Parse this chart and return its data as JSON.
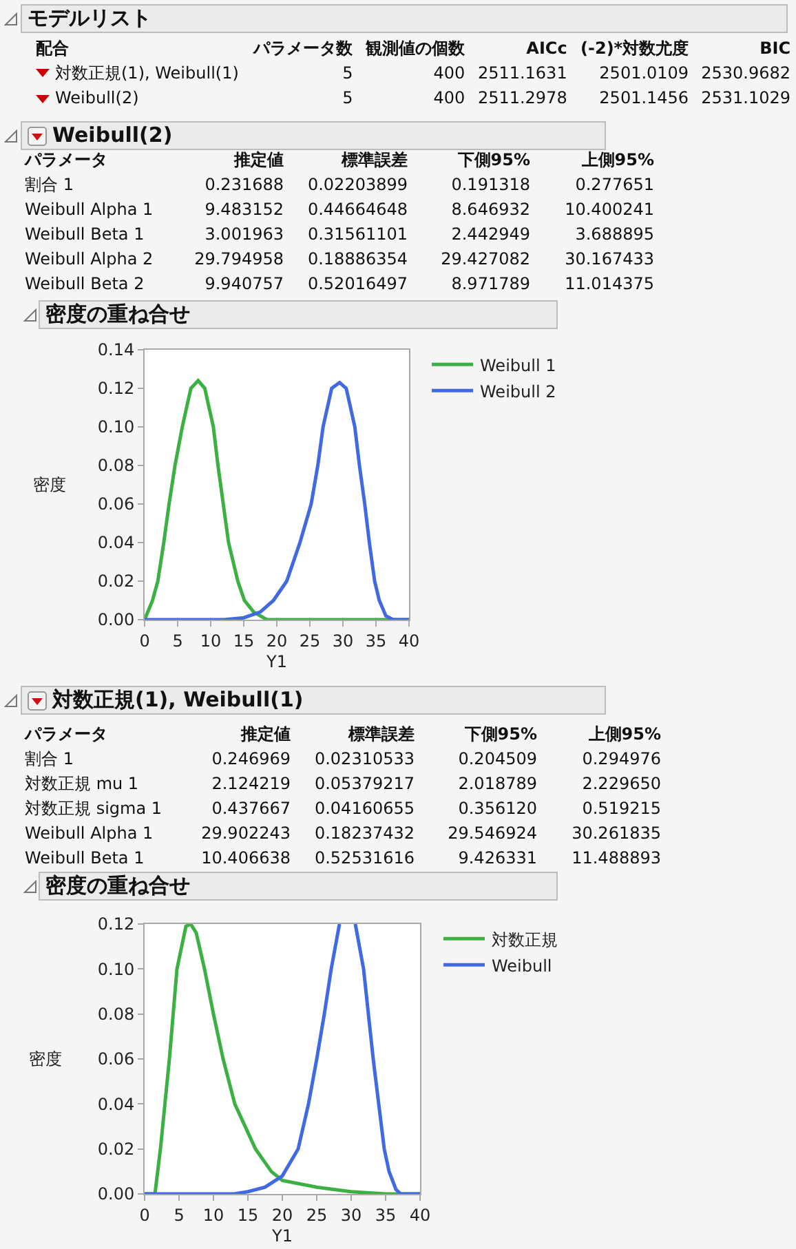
{
  "chart_data": [
    {
      "type": "other",
      "title": "モデルリスト",
      "categories": [
        "配合",
        "パラメータ数",
        "観測値の個数",
        "AICc",
        "(-2)*対数尤度",
        "BIC"
      ],
      "y_categories": [
        "対数正規(1), Weibull(1)",
        "Weibull(2)"
      ],
      "cell_labels": [
        [
          "5",
          "400",
          "2511.1631",
          "2501.0109",
          "2530.9682"
        ],
        [
          "5",
          "400",
          "2511.2978",
          "2501.1456",
          "2531.1029"
        ]
      ]
    },
    {
      "type": "other",
      "title": "Weibull(2)",
      "categories": [
        "パラメータ",
        "推定値",
        "標準誤差",
        "下側95%",
        "上側95%"
      ],
      "y_categories": [
        "割合 1",
        "Weibull Alpha 1",
        "Weibull Beta 1",
        "Weibull Alpha 2",
        "Weibull Beta 2"
      ],
      "cell_labels": [
        [
          "0.231688",
          "0.02203899",
          "0.191318",
          "0.277651"
        ],
        [
          "9.483152",
          "0.44664648",
          "8.646932",
          "10.400241"
        ],
        [
          "3.001963",
          "0.31561101",
          "2.442949",
          "3.688895"
        ],
        [
          "29.794958",
          "0.18886354",
          "29.427082",
          "30.167433"
        ],
        [
          "9.940757",
          "0.52016497",
          "8.971789",
          "11.014375"
        ]
      ]
    },
    {
      "type": "line",
      "title": "密度の重ね合せ",
      "xlabel": "Y1",
      "ylabel": "密度",
      "legend": "top right",
      "xlim": [
        0,
        40
      ],
      "xticks": [
        0,
        5,
        10,
        15,
        20,
        25,
        30,
        35,
        40
      ],
      "ylim": [
        0,
        0.14
      ],
      "yticks": [
        {
          "value": 0,
          "label": "0.00"
        },
        {
          "value": 0.02,
          "label": "0.02"
        },
        {
          "value": 0.04,
          "label": "0.04"
        },
        {
          "value": 0.06,
          "label": "0.06"
        },
        {
          "value": 0.08,
          "label": "0.08"
        },
        {
          "value": 0.1,
          "label": "0.10"
        },
        {
          "value": 0.12,
          "label": "0.12"
        },
        {
          "value": 0.14,
          "label": "0.14"
        }
      ],
      "series": [
        {
          "name": "Weibull 1",
          "color": "#3cb043",
          "x": [
            0,
            1.2,
            2,
            2.9,
            3.7,
            4.6,
            5.7,
            7,
            8.1,
            9.1,
            10.4,
            11.1,
            11.9,
            12.7,
            14.1,
            15.1,
            16.5,
            18.5,
            40
          ],
          "values": [
            0,
            0.01,
            0.02,
            0.04,
            0.06,
            0.08,
            0.1,
            0.12,
            0.124,
            0.12,
            0.1,
            0.08,
            0.06,
            0.04,
            0.02,
            0.01,
            0.004,
            0,
            0
          ]
        },
        {
          "name": "Weibull 2",
          "color": "#4169e1",
          "x": [
            0,
            12,
            15,
            17.5,
            19.5,
            21.5,
            23.5,
            25.2,
            26.2,
            27,
            28.3,
            29.5,
            30.5,
            31.8,
            32.5,
            33.3,
            34,
            34.8,
            35.5,
            36.5,
            37.6,
            40
          ],
          "values": [
            0,
            0,
            0.001,
            0.004,
            0.01,
            0.02,
            0.04,
            0.06,
            0.08,
            0.1,
            0.12,
            0.123,
            0.12,
            0.1,
            0.08,
            0.06,
            0.04,
            0.02,
            0.01,
            0.002,
            0,
            0
          ]
        }
      ]
    },
    {
      "type": "other",
      "title": "対数正規(1), Weibull(1)",
      "categories": [
        "パラメータ",
        "推定値",
        "標準誤差",
        "下側95%",
        "上側95%"
      ],
      "y_categories": [
        "割合 1",
        "対数正規 mu 1",
        "対数正規 sigma 1",
        "Weibull Alpha 1",
        "Weibull Beta 1"
      ],
      "cell_labels": [
        [
          "0.246969",
          "0.02310533",
          "0.204509",
          "0.294976"
        ],
        [
          "2.124219",
          "0.05379217",
          "2.018789",
          "2.229650"
        ],
        [
          "0.437667",
          "0.04160655",
          "0.356120",
          "0.519215"
        ],
        [
          "29.902243",
          "0.18237432",
          "29.546924",
          "30.261835"
        ],
        [
          "10.406638",
          "0.52531616",
          "9.426331",
          "11.488893"
        ]
      ]
    },
    {
      "type": "line",
      "title": "密度の重ね合せ",
      "xlabel": "Y1",
      "ylabel": "密度",
      "legend": "top right",
      "xlim": [
        0,
        40
      ],
      "xticks": [
        0,
        5,
        10,
        15,
        20,
        25,
        30,
        35,
        40
      ],
      "ylim": [
        0,
        0.12
      ],
      "yticks": [
        {
          "value": 0,
          "label": "0.00"
        },
        {
          "value": 0.02,
          "label": "0.02"
        },
        {
          "value": 0.04,
          "label": "0.04"
        },
        {
          "value": 0.06,
          "label": "0.06"
        },
        {
          "value": 0.08,
          "label": "0.08"
        },
        {
          "value": 0.1,
          "label": "0.10"
        },
        {
          "value": 0.12,
          "label": "0.12"
        }
      ],
      "series": [
        {
          "name": "対数正規",
          "color": "#3cb043",
          "x": [
            0,
            1.5,
            2.3,
            3.6,
            4.7,
            6,
            6.7,
            7.5,
            8.7,
            10,
            11.4,
            13.1,
            16.1,
            18.4,
            20,
            25,
            30,
            35,
            40
          ],
          "values": [
            0,
            0,
            0.02,
            0.06,
            0.1,
            0.119,
            0.12,
            0.116,
            0.1,
            0.08,
            0.06,
            0.04,
            0.02,
            0.01,
            0.006,
            0.003,
            0.001,
            0,
            0
          ]
        },
        {
          "name": "Weibull",
          "color": "#4169e1",
          "x": [
            0,
            13,
            15,
            17.5,
            20,
            22.3,
            23.8,
            25,
            26.1,
            27.1,
            28.3,
            29.5,
            30.6,
            31.8,
            32.5,
            33.2,
            34,
            34.8,
            35.5,
            36.5,
            37.2,
            40
          ],
          "values": [
            0,
            0,
            0.001,
            0.003,
            0.008,
            0.02,
            0.04,
            0.06,
            0.08,
            0.1,
            0.12,
            null,
            0.12,
            0.1,
            0.08,
            0.06,
            0.04,
            0.02,
            0.01,
            0.002,
            0,
            0
          ]
        }
      ]
    }
  ]
}
